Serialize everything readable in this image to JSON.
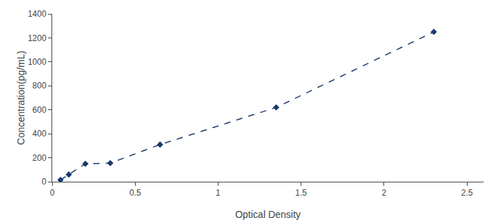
{
  "chart_data": {
    "type": "line",
    "xlabel": "Optical Density",
    "ylabel": "Concentration(pg/mL)",
    "x": [
      0.05,
      0.1,
      0.2,
      0.35,
      0.65,
      1.35,
      2.3
    ],
    "values": [
      15,
      60,
      150,
      155,
      310,
      620,
      1250
    ],
    "color": "#1A3A6B",
    "marker": "diamond",
    "line_style": "dashed",
    "xlim": [
      0,
      2.6
    ],
    "ylim": [
      0,
      1400
    ],
    "xticks": [
      0,
      0.5,
      1,
      1.5,
      2,
      2.5
    ],
    "yticks": [
      0,
      200,
      400,
      600,
      800,
      1000,
      1200,
      1400
    ],
    "grid": false
  }
}
